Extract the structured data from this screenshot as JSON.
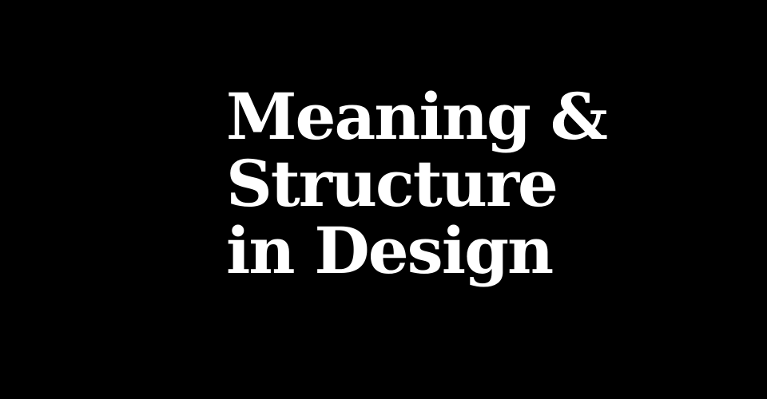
{
  "title": {
    "lines": [
      "Meaning &",
      "Structure",
      "in Design"
    ]
  },
  "colors": {
    "background": "#000000",
    "text": "#ffffff"
  }
}
